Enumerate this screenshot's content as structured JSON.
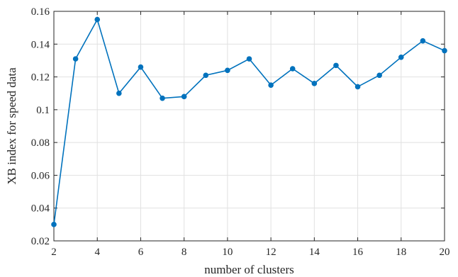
{
  "chart_data": {
    "type": "line",
    "xlabel": "number of clusters",
    "ylabel": "XB index for speed data",
    "xlim": [
      2,
      20
    ],
    "ylim": [
      0.02,
      0.16
    ],
    "xticks": [
      2,
      4,
      6,
      8,
      10,
      12,
      14,
      16,
      18,
      20
    ],
    "yticks": [
      0.02,
      0.04,
      0.06,
      0.08,
      0.1,
      0.12,
      0.14,
      0.16
    ],
    "xtick_labels": [
      "2",
      "4",
      "6",
      "8",
      "10",
      "12",
      "14",
      "16",
      "18",
      "20"
    ],
    "ytick_labels": [
      "0.02",
      "0.04",
      "0.06",
      "0.08",
      "0.1",
      "0.12",
      "0.14",
      "0.16"
    ],
    "grid": true,
    "series": [
      {
        "color": "#0072bd",
        "marker": "circle",
        "x": [
          2,
          3,
          4,
          5,
          6,
          7,
          8,
          9,
          10,
          11,
          12,
          13,
          14,
          15,
          16,
          17,
          18,
          19,
          20
        ],
        "y": [
          0.03,
          0.131,
          0.155,
          0.11,
          0.126,
          0.107,
          0.108,
          0.121,
          0.124,
          0.131,
          0.115,
          0.125,
          0.116,
          0.127,
          0.114,
          0.121,
          0.132,
          0.142,
          0.136
        ]
      }
    ]
  }
}
